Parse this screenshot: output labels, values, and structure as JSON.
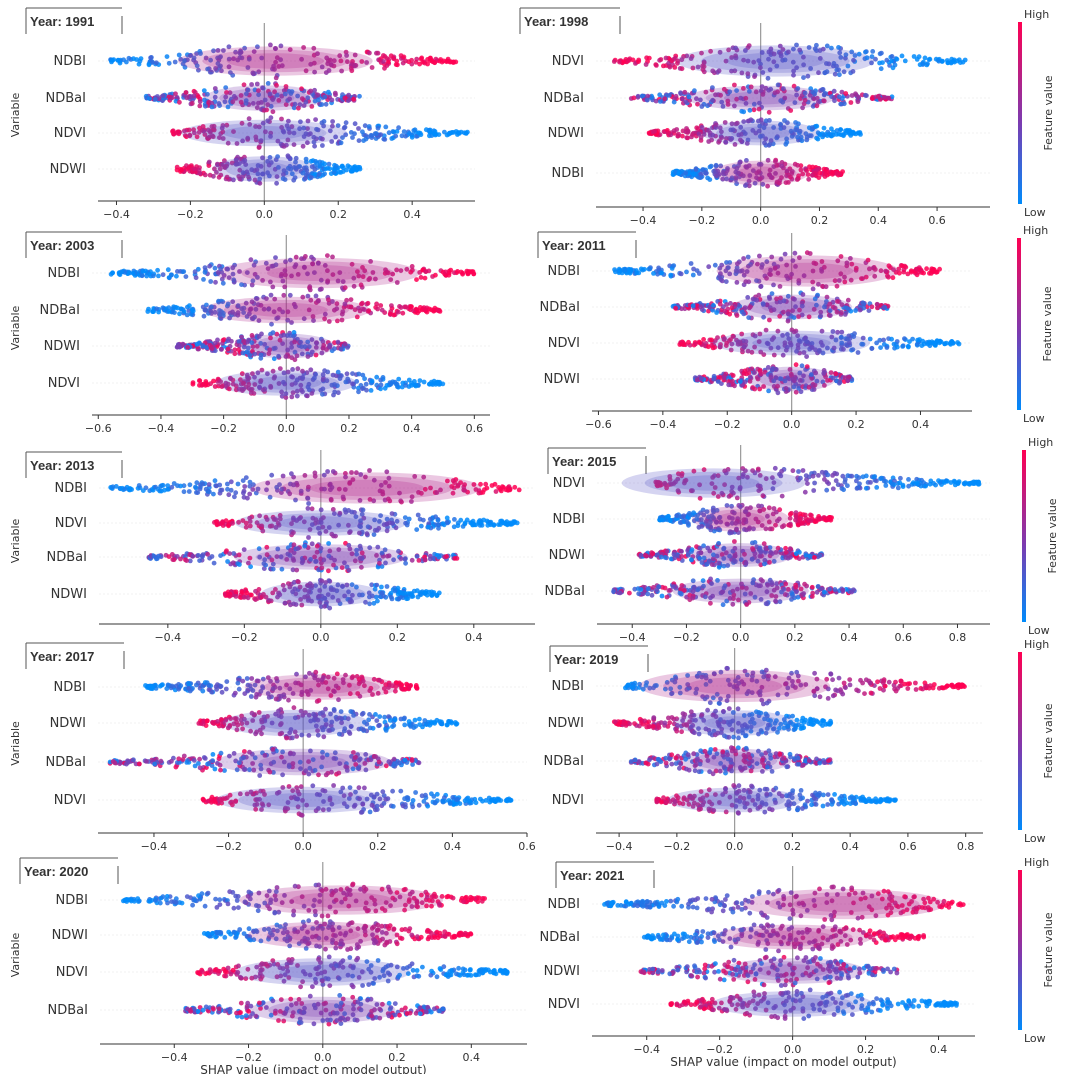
{
  "colors": {
    "high": "#ff0052",
    "low": "#008bfb",
    "axis": "#333333",
    "zero_line": "#999999",
    "row_line": "#f0f0f0"
  },
  "chart_data": [
    {
      "type": "scatter",
      "subtype": "beeswarm",
      "title": "Year: 1991",
      "ylabel": "Variable",
      "xlabel": "",
      "xticks": [
        "−0.4",
        "−0.2",
        "0.0",
        "0.2",
        "0.4"
      ],
      "xlim": [
        -0.45,
        0.57
      ],
      "variables": [
        "NDBI",
        "NDBaI",
        "NDVI",
        "NDWI"
      ],
      "series": [
        {
          "name": "NDBI",
          "min": -0.42,
          "max": 0.52,
          "peak": 0.03,
          "width": 0.75,
          "color_trend": 1
        },
        {
          "name": "NDBaI",
          "min": -0.32,
          "max": 0.26,
          "peak": 0.0,
          "width": 0.55,
          "color_trend": 0
        },
        {
          "name": "NDVI",
          "min": -0.25,
          "max": 0.55,
          "peak": 0.0,
          "width": 0.6,
          "color_trend": -1
        },
        {
          "name": "NDWI",
          "min": -0.24,
          "max": 0.26,
          "peak": 0.0,
          "width": 0.55,
          "color_trend": -1
        }
      ]
    },
    {
      "type": "scatter",
      "subtype": "beeswarm",
      "title": "Year: 1998",
      "ylabel": "",
      "xlabel": "",
      "xticks": [
        "−0.4",
        "−0.2",
        "0.0",
        "0.2",
        "0.4",
        "0.6"
      ],
      "xlim": [
        -0.56,
        0.78
      ],
      "variables": [
        "NDVI",
        "NDBaI",
        "NDWI",
        "NDBI"
      ],
      "series": [
        {
          "name": "NDVI",
          "min": -0.5,
          "max": 0.7,
          "peak": 0.05,
          "width": 0.85,
          "color_trend": -1
        },
        {
          "name": "NDBaI",
          "min": -0.44,
          "max": 0.45,
          "peak": 0.0,
          "width": 0.5,
          "color_trend": 0
        },
        {
          "name": "NDWI",
          "min": -0.38,
          "max": 0.34,
          "peak": 0.0,
          "width": 0.5,
          "color_trend": -1
        },
        {
          "name": "NDBI",
          "min": -0.3,
          "max": 0.28,
          "peak": 0.0,
          "width": 0.5,
          "color_trend": 1
        }
      ],
      "colorbar": {
        "high": "High",
        "low": "Low",
        "label": "Feature value"
      }
    },
    {
      "type": "scatter",
      "subtype": "beeswarm",
      "title": "Year: 2003",
      "ylabel": "Variable",
      "xlabel": "",
      "xticks": [
        "−0.6",
        "−0.4",
        "−0.2",
        "0.0",
        "0.2",
        "0.4",
        "0.6"
      ],
      "xlim": [
        -0.62,
        0.65
      ],
      "variables": [
        "NDBI",
        "NDBaI",
        "NDWI",
        "NDVI"
      ],
      "series": [
        {
          "name": "NDBI",
          "min": -0.56,
          "max": 0.6,
          "peak": 0.1,
          "width": 0.8,
          "color_trend": 1
        },
        {
          "name": "NDBaI",
          "min": -0.45,
          "max": 0.5,
          "peak": 0.0,
          "width": 0.6,
          "color_trend": 1
        },
        {
          "name": "NDWI",
          "min": -0.35,
          "max": 0.2,
          "peak": 0.0,
          "width": 0.5,
          "color_trend": 0
        },
        {
          "name": "NDVI",
          "min": -0.3,
          "max": 0.5,
          "peak": 0.0,
          "width": 0.55,
          "color_trend": -1
        }
      ]
    },
    {
      "type": "scatter",
      "subtype": "beeswarm",
      "title": "Year: 2011",
      "ylabel": "",
      "xlabel": "",
      "xticks": [
        "−0.6",
        "−0.4",
        "−0.2",
        "0.0",
        "0.2",
        "0.4"
      ],
      "xlim": [
        -0.62,
        0.56
      ],
      "variables": [
        "NDBI",
        "NDBaI",
        "NDVI",
        "NDWI"
      ],
      "series": [
        {
          "name": "NDBI",
          "min": -0.55,
          "max": 0.46,
          "peak": 0.05,
          "width": 0.85,
          "color_trend": 1
        },
        {
          "name": "NDBaI",
          "min": -0.37,
          "max": 0.3,
          "peak": 0.0,
          "width": 0.5,
          "color_trend": 0
        },
        {
          "name": "NDVI",
          "min": -0.35,
          "max": 0.52,
          "peak": 0.0,
          "width": 0.5,
          "color_trend": -1
        },
        {
          "name": "NDWI",
          "min": -0.3,
          "max": 0.19,
          "peak": 0.0,
          "width": 0.5,
          "color_trend": 0
        }
      ],
      "colorbar": {
        "high": "High",
        "low": "Low",
        "label": "Feature value"
      }
    },
    {
      "type": "scatter",
      "subtype": "beeswarm",
      "title": "Year: 2013",
      "ylabel": "Variable",
      "xlabel": "",
      "xticks": [
        "−0.4",
        "−0.2",
        "0.0",
        "0.2",
        "0.4"
      ],
      "xlim": [
        -0.58,
        0.56
      ],
      "variables": [
        "NDBI",
        "NDVI",
        "NDBaI",
        "NDWI"
      ],
      "series": [
        {
          "name": "NDBI",
          "min": -0.55,
          "max": 0.52,
          "peak": 0.12,
          "width": 0.85,
          "color_trend": 1
        },
        {
          "name": "NDVI",
          "min": -0.28,
          "max": 0.52,
          "peak": 0.0,
          "width": 0.55,
          "color_trend": -1
        },
        {
          "name": "NDBaI",
          "min": -0.45,
          "max": 0.36,
          "peak": 0.0,
          "width": 0.55,
          "color_trend": 0
        },
        {
          "name": "NDWI",
          "min": -0.25,
          "max": 0.31,
          "peak": 0.0,
          "width": 0.5,
          "color_trend": -1
        }
      ]
    },
    {
      "type": "scatter",
      "subtype": "beeswarm",
      "title": "Year: 2015",
      "ylabel": "",
      "xlabel": "",
      "xticks": [
        "−0.4",
        "−0.2",
        "0.0",
        "0.2",
        "0.4",
        "0.6",
        "0.8"
      ],
      "xlim": [
        -0.53,
        0.92
      ],
      "variables": [
        "NDVI",
        "NDBI",
        "NDWI",
        "NDBaI"
      ],
      "series": [
        {
          "name": "NDVI",
          "min": -0.33,
          "max": 0.88,
          "peak": -0.1,
          "width": 0.75,
          "color_trend": -1
        },
        {
          "name": "NDBI",
          "min": -0.3,
          "max": 0.34,
          "peak": 0.0,
          "width": 0.55,
          "color_trend": 1
        },
        {
          "name": "NDWI",
          "min": -0.38,
          "max": 0.3,
          "peak": 0.0,
          "width": 0.45,
          "color_trend": 0
        },
        {
          "name": "NDBaI",
          "min": -0.48,
          "max": 0.42,
          "peak": 0.0,
          "width": 0.5,
          "color_trend": 0
        }
      ],
      "colorbar": {
        "high": "High",
        "low": "Low",
        "label": "Feature value"
      }
    },
    {
      "type": "scatter",
      "subtype": "beeswarm",
      "title": "Year: 2017",
      "ylabel": "Variable",
      "xlabel": "",
      "xticks": [
        "−0.4",
        "−0.2",
        "0.0",
        "0.2",
        "0.4",
        "0.6"
      ],
      "xlim": [
        -0.55,
        0.6
      ],
      "variables": [
        "NDBI",
        "NDWI",
        "NDBaI",
        "NDVI"
      ],
      "series": [
        {
          "name": "NDBI",
          "min": -0.43,
          "max": 0.31,
          "peak": 0.05,
          "width": 0.55,
          "color_trend": 1
        },
        {
          "name": "NDWI",
          "min": -0.28,
          "max": 0.42,
          "peak": -0.02,
          "width": 0.6,
          "color_trend": -1
        },
        {
          "name": "NDBaI",
          "min": -0.52,
          "max": 0.32,
          "peak": 0.0,
          "width": 0.6,
          "color_trend": 0
        },
        {
          "name": "NDVI",
          "min": -0.27,
          "max": 0.56,
          "peak": 0.0,
          "width": 0.6,
          "color_trend": -1
        }
      ]
    },
    {
      "type": "scatter",
      "subtype": "beeswarm",
      "title": "Year: 2019",
      "ylabel": "",
      "xlabel": "",
      "xticks": [
        "−0.4",
        "−0.2",
        "0.0",
        "0.2",
        "0.4",
        "0.6",
        "0.8"
      ],
      "xlim": [
        -0.48,
        0.86
      ],
      "variables": [
        "NDBI",
        "NDWI",
        "NDBaI",
        "NDVI"
      ],
      "series": [
        {
          "name": "NDBI",
          "min": -0.38,
          "max": 0.8,
          "peak": 0.0,
          "width": 0.9,
          "color_trend": 1
        },
        {
          "name": "NDWI",
          "min": -0.42,
          "max": 0.34,
          "peak": 0.0,
          "width": 0.55,
          "color_trend": -1
        },
        {
          "name": "NDBaI",
          "min": -0.36,
          "max": 0.34,
          "peak": 0.0,
          "width": 0.5,
          "color_trend": 0
        },
        {
          "name": "NDVI",
          "min": -0.27,
          "max": 0.56,
          "peak": 0.0,
          "width": 0.5,
          "color_trend": -1
        }
      ],
      "colorbar": {
        "high": "High",
        "low": "Low",
        "label": "Feature value"
      }
    },
    {
      "type": "scatter",
      "subtype": "beeswarm",
      "title": "Year: 2020",
      "ylabel": "Variable",
      "xlabel": "SHAP value (impact on model output)",
      "xticks": [
        "−0.4",
        "−0.2",
        "0.0",
        "0.2",
        "0.4"
      ],
      "xlim": [
        -0.6,
        0.55
      ],
      "variables": [
        "NDBI",
        "NDWI",
        "NDVI",
        "NDBaI"
      ],
      "series": [
        {
          "name": "NDBI",
          "min": -0.54,
          "max": 0.44,
          "peak": 0.05,
          "width": 0.75,
          "color_trend": 1
        },
        {
          "name": "NDWI",
          "min": -0.32,
          "max": 0.4,
          "peak": 0.0,
          "width": 0.6,
          "color_trend": 1
        },
        {
          "name": "NDVI",
          "min": -0.34,
          "max": 0.5,
          "peak": 0.0,
          "width": 0.65,
          "color_trend": -1
        },
        {
          "name": "NDBaI",
          "min": -0.37,
          "max": 0.33,
          "peak": 0.0,
          "width": 0.6,
          "color_trend": 0
        }
      ]
    },
    {
      "type": "scatter",
      "subtype": "beeswarm",
      "title": "Year: 2021",
      "ylabel": "",
      "xlabel": "SHAP value (impact on model output)",
      "xticks": [
        "−0.4",
        "−0.2",
        "0.0",
        "0.2",
        "0.4"
      ],
      "xlim": [
        -0.55,
        0.5
      ],
      "variables": [
        "NDBI",
        "NDBaI",
        "NDWI",
        "NDVI"
      ],
      "series": [
        {
          "name": "NDBI",
          "min": -0.52,
          "max": 0.47,
          "peak": 0.14,
          "width": 0.8,
          "color_trend": 1
        },
        {
          "name": "NDBaI",
          "min": -0.42,
          "max": 0.36,
          "peak": 0.0,
          "width": 0.5,
          "color_trend": 1
        },
        {
          "name": "NDWI",
          "min": -0.42,
          "max": 0.29,
          "peak": 0.0,
          "width": 0.55,
          "color_trend": 0
        },
        {
          "name": "NDVI",
          "min": -0.34,
          "max": 0.45,
          "peak": 0.0,
          "width": 0.55,
          "color_trend": -1
        }
      ],
      "colorbar": {
        "high": "High",
        "low": "Low",
        "label": "Feature value"
      }
    }
  ]
}
